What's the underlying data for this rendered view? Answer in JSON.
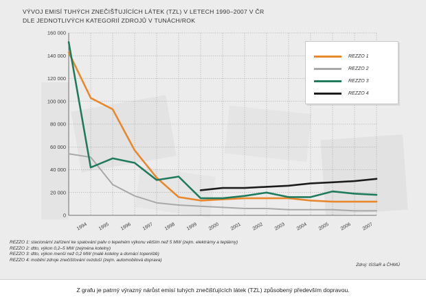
{
  "title_lines": [
    "VÝVOJ EMISÍ TUHÝCH ZNEČIŠŤUJÍCÍCH LÁTEK (TZL) V LETECH 1990–2007 V ČR",
    "DLE JEDNOTLIVÝCH KATEGORIÍ ZDROJŮ V TUNÁCH/ROK"
  ],
  "notes": [
    "REZZO 1: stacionární zařízení ke spalování paliv o tepelném výkonu větším než 5 MW (zejm. elektrárny a teplárny)",
    "REZZO 2: dtto, výkon 0,2–5 MW (zejména kotelny)",
    "REZZO 3: dtto, výkon menší než 0,2 MW (malé kotelny a domácí topeniště)",
    "REZZO 4: mobilní zdroje znečišťování ovzduší (zejm. automobilová doprava)"
  ],
  "source": "Zdroj: ISSaR a ČHMÚ",
  "caption": "Z grafu je patrný výrazný nárůst emisí tuhých znečišťujících látek (TZL) způsobený především dopravou.",
  "colors": {
    "rezzo1": "#e8872b",
    "rezzo2": "#a8a8a8",
    "rezzo3": "#1f7a5e",
    "rezzo4": "#1c1c1c",
    "grid": "#9a9a9a"
  },
  "chart_data": {
    "type": "line",
    "x": [
      1993,
      1994,
      1995,
      1996,
      1997,
      1998,
      1999,
      2000,
      2001,
      2002,
      2003,
      2004,
      2005,
      2006,
      2007
    ],
    "x_tick_labels": [
      "1994",
      "1995",
      "1996",
      "1997",
      "1998",
      "1999",
      "2000",
      "2001",
      "2002",
      "2003",
      "2004",
      "2005",
      "2006",
      "2007"
    ],
    "y_ticks": [
      0,
      20000,
      40000,
      60000,
      80000,
      100000,
      120000,
      140000,
      160000
    ],
    "y_tick_labels": [
      "0",
      "20 000",
      "40 000",
      "60 000",
      "80 000",
      "100 000",
      "120 000",
      "140 000",
      "160 000"
    ],
    "ylim": [
      0,
      160000
    ],
    "grid": true,
    "legend_position": "top-right",
    "series": [
      {
        "name": "REZZO 1",
        "color": "#e8872b",
        "x": [
          1993,
          1994,
          1995,
          1996,
          1997,
          1998,
          1999,
          2000,
          2001,
          2002,
          2003,
          2004,
          2005,
          2006,
          2007
        ],
        "values": [
          143000,
          103000,
          93000,
          57000,
          33000,
          16000,
          13000,
          14000,
          15000,
          15000,
          15000,
          13000,
          12000,
          12000,
          12000
        ]
      },
      {
        "name": "REZZO 2",
        "color": "#a8a8a8",
        "x": [
          1993,
          1994,
          1995,
          1996,
          1997,
          1998,
          1999,
          2000,
          2001,
          2002,
          2003,
          2004,
          2005,
          2006,
          2007
        ],
        "values": [
          54000,
          51000,
          27000,
          17000,
          11000,
          9000,
          8000,
          7000,
          6000,
          6000,
          5000,
          5000,
          5000,
          4000,
          4000
        ]
      },
      {
        "name": "REZZO 3",
        "color": "#1f7a5e",
        "x": [
          1993,
          1994,
          1995,
          1996,
          1997,
          1998,
          1999,
          2000,
          2001,
          2002,
          2003,
          2004,
          2005,
          2006,
          2007
        ],
        "values": [
          152000,
          42000,
          50000,
          46000,
          31000,
          34000,
          15000,
          15000,
          17000,
          20000,
          16000,
          16000,
          21000,
          19000,
          18000
        ]
      },
      {
        "name": "REZZO 4",
        "color": "#1c1c1c",
        "x": [
          1999,
          2000,
          2001,
          2002,
          2003,
          2004,
          2005,
          2006,
          2007
        ],
        "values": [
          22000,
          24000,
          24000,
          25000,
          26000,
          28000,
          29000,
          30000,
          32000
        ]
      }
    ]
  }
}
